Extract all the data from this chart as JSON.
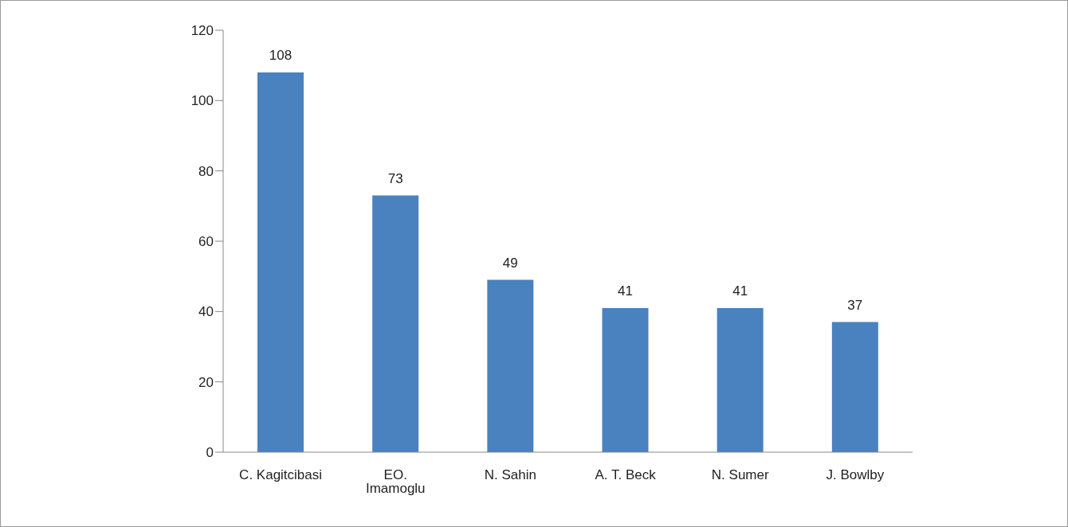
{
  "chart_data": {
    "type": "bar",
    "categories": [
      "C. Kagitcibasi",
      "EO. Imamoglu",
      "N. Sahin",
      "A. T. Beck",
      "N. Sumer",
      "J. Bowlby"
    ],
    "values": [
      108,
      73,
      49,
      41,
      41,
      37
    ],
    "color": "#4a81bf",
    "ylim": [
      0,
      120
    ],
    "yticks": [
      0,
      20,
      40,
      60,
      80,
      100,
      120
    ],
    "data_labels": true,
    "grid": false,
    "legend": false
  }
}
